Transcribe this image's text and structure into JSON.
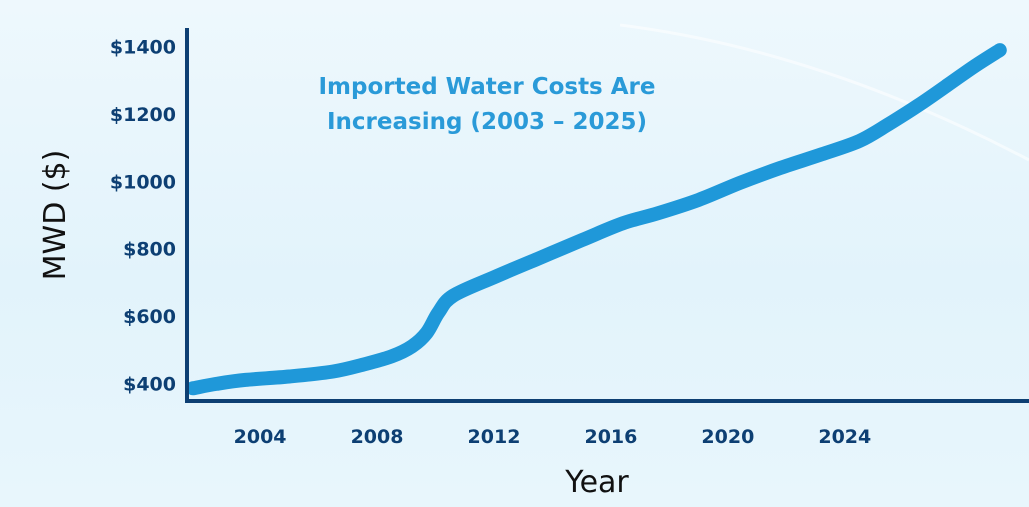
{
  "colors": {
    "line": "#1f98d9",
    "axis": "#0d3f73",
    "tick_text": "#0d3f73",
    "title": "#2a9ad8",
    "background": "#e6f5fc"
  },
  "chart_data": {
    "type": "line",
    "title_lines": [
      "Imported Water Costs Are",
      "Increasing (2003 – 2025)"
    ],
    "xlabel": "Year",
    "ylabel": "MWD ($)",
    "xlim": [
      2001.5,
      2030.3
    ],
    "ylim": [
      380,
      1420
    ],
    "x_ticks": [
      {
        "value": 2004,
        "label": "2004"
      },
      {
        "value": 2008,
        "label": "2008"
      },
      {
        "value": 2012,
        "label": "2012"
      },
      {
        "value": 2016,
        "label": "2016"
      },
      {
        "value": 2020,
        "label": "2020"
      },
      {
        "value": 2024,
        "label": "2024"
      }
    ],
    "y_ticks": [
      {
        "value": 400,
        "label": "$400"
      },
      {
        "value": 600,
        "label": "$600"
      },
      {
        "value": 800,
        "label": "$800"
      },
      {
        "value": 1000,
        "label": "$1000"
      },
      {
        "value": 1200,
        "label": "$1200"
      },
      {
        "value": 1400,
        "label": "$1400"
      }
    ],
    "grid": false,
    "legend": "none",
    "series": [
      {
        "x": [
          2001.7,
          2002.5,
          2003.5,
          2005,
          2006.5,
          2007.5,
          2008.5,
          2009.2,
          2009.7,
          2010.1,
          2010.6,
          2012,
          2013.5,
          2015,
          2016.4,
          2017.6,
          2019,
          2020.4,
          2021.8,
          2023.2,
          2024.5,
          2025.5,
          2026.5,
          2027.5,
          2028.4,
          2029.3
        ],
        "y": [
          385,
          398,
          410,
          420,
          435,
          455,
          480,
          510,
          550,
          610,
          660,
          715,
          770,
          825,
          875,
          905,
          945,
          995,
          1040,
          1080,
          1120,
          1170,
          1225,
          1285,
          1340,
          1390
        ]
      }
    ]
  }
}
